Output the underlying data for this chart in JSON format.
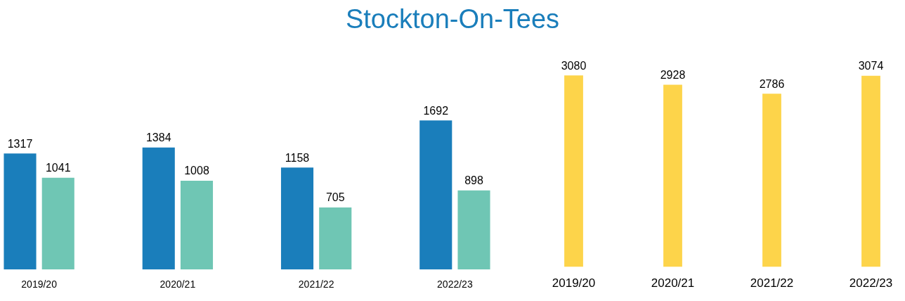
{
  "chart_data": [
    {
      "type": "bar",
      "title": "Stockton-On-Tees",
      "categories": [
        "2019/20",
        "2020/21",
        "2021/22",
        "2022/23"
      ],
      "series": [
        {
          "color": "#1a7ebb",
          "values": [
            1317,
            1384,
            1158,
            1692
          ]
        },
        {
          "color": "#6fc6b4",
          "values": [
            1041,
            1008,
            705,
            898
          ]
        }
      ],
      "data_labels": true,
      "grid": false,
      "legend": false
    },
    {
      "type": "bar",
      "categories": [
        "2019/20",
        "2020/21",
        "2021/22",
        "2022/23"
      ],
      "series": [
        {
          "color": "#fdd44a",
          "values": [
            3080,
            2928,
            2786,
            3074
          ]
        }
      ],
      "data_labels": true,
      "grid": false,
      "legend": false
    }
  ]
}
